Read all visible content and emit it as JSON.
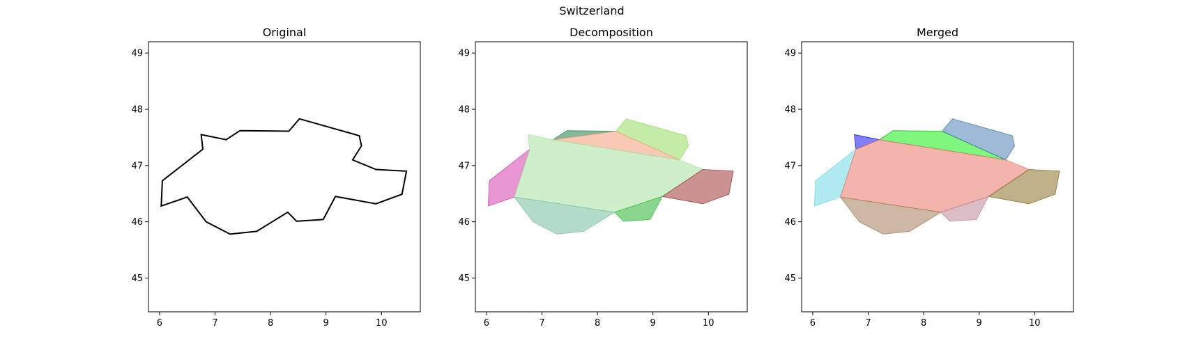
{
  "figure": {
    "suptitle": "Switzerland"
  },
  "chart_data": [
    {
      "type": "polygon",
      "title": "Original",
      "xlim": [
        5.8,
        10.7
      ],
      "ylim": [
        44.4,
        49.2
      ],
      "xticks": [
        6,
        7,
        8,
        9,
        10
      ],
      "yticks": [
        45,
        46,
        47,
        48,
        49
      ],
      "shapes": [
        {
          "name": "",
          "fill": "none",
          "stroke": "#000000",
          "opacity": 1.0,
          "points": [
            [
              6.05,
              46.73
            ],
            [
              6.78,
              47.29
            ],
            [
              6.75,
              47.55
            ],
            [
              7.2,
              47.46
            ],
            [
              7.45,
              47.62
            ],
            [
              8.33,
              47.61
            ],
            [
              8.52,
              47.83
            ],
            [
              9.6,
              47.53
            ],
            [
              9.64,
              47.35
            ],
            [
              9.48,
              47.1
            ],
            [
              9.9,
              46.93
            ],
            [
              10.45,
              46.9
            ],
            [
              10.37,
              46.49
            ],
            [
              9.9,
              46.32
            ],
            [
              9.17,
              46.45
            ],
            [
              8.95,
              46.04
            ],
            [
              8.47,
              46.01
            ],
            [
              8.31,
              46.17
            ],
            [
              7.75,
              45.83
            ],
            [
              7.27,
              45.78
            ],
            [
              6.84,
              46.0
            ],
            [
              6.5,
              46.44
            ],
            [
              6.03,
              46.28
            ]
          ]
        }
      ]
    },
    {
      "type": "polygon",
      "title": "Decomposition",
      "xlim": [
        5.8,
        10.7
      ],
      "ylim": [
        44.4,
        49.2
      ],
      "xticks": [
        6,
        7,
        8,
        9,
        10
      ],
      "yticks": [
        45,
        46,
        47,
        48,
        49
      ],
      "shapes": [
        {
          "name": "",
          "fill": "#2e8b57",
          "stroke": "#2e8b57",
          "opacity": 0.6,
          "points": [
            [
              7.2,
              47.46
            ],
            [
              7.45,
              47.62
            ],
            [
              8.33,
              47.61
            ]
          ]
        },
        {
          "name": "",
          "fill": "#9ee06a",
          "stroke": "#9ee06a",
          "opacity": 0.6,
          "points": [
            [
              8.33,
              47.61
            ],
            [
              8.52,
              47.83
            ],
            [
              9.6,
              47.53
            ],
            [
              9.64,
              47.35
            ],
            [
              9.48,
              47.1
            ]
          ]
        },
        {
          "name": "",
          "fill": "#f4a582",
          "stroke": "#f4a582",
          "opacity": 0.6,
          "points": [
            [
              7.2,
              47.46
            ],
            [
              8.33,
              47.61
            ],
            [
              9.48,
              47.1
            ]
          ]
        },
        {
          "name": "",
          "fill": "#d63fad",
          "stroke": "#d63fad",
          "opacity": 0.55,
          "points": [
            [
              6.05,
              46.73
            ],
            [
              6.78,
              47.29
            ],
            [
              6.5,
              46.44
            ],
            [
              6.03,
              46.28
            ]
          ]
        },
        {
          "name": "",
          "fill": "#a8e2a0",
          "stroke": "#a8e2a0",
          "opacity": 0.55,
          "points": [
            [
              6.78,
              47.29
            ],
            [
              6.75,
              47.55
            ],
            [
              7.2,
              47.46
            ],
            [
              9.48,
              47.1
            ],
            [
              9.9,
              46.93
            ],
            [
              9.17,
              46.45
            ],
            [
              8.31,
              46.17
            ],
            [
              6.5,
              46.44
            ]
          ]
        },
        {
          "name": "",
          "fill": "#9b3a35",
          "stroke": "#9b3a35",
          "opacity": 0.55,
          "points": [
            [
              9.9,
              46.93
            ],
            [
              10.45,
              46.9
            ],
            [
              10.37,
              46.49
            ],
            [
              9.9,
              46.32
            ],
            [
              9.17,
              46.45
            ]
          ]
        },
        {
          "name": "",
          "fill": "#3cbb42",
          "stroke": "#3cbb42",
          "opacity": 0.6,
          "points": [
            [
              9.17,
              46.45
            ],
            [
              8.95,
              46.04
            ],
            [
              8.47,
              46.01
            ],
            [
              8.31,
              46.17
            ]
          ]
        },
        {
          "name": "",
          "fill": "#7fc4a5",
          "stroke": "#7fc4a5",
          "opacity": 0.6,
          "points": [
            [
              6.5,
              46.44
            ],
            [
              8.31,
              46.17
            ],
            [
              7.75,
              45.83
            ],
            [
              7.27,
              45.78
            ],
            [
              6.84,
              46.0
            ]
          ]
        }
      ]
    },
    {
      "type": "polygon",
      "title": "Merged",
      "xlim": [
        5.8,
        10.7
      ],
      "ylim": [
        44.4,
        49.2
      ],
      "xticks": [
        6,
        7,
        8,
        9,
        10
      ],
      "yticks": [
        45,
        46,
        47,
        48,
        49
      ],
      "shapes": [
        {
          "name": "",
          "fill": "#0000ff",
          "stroke": "#0000cc",
          "opacity": 0.5,
          "points": [
            [
              6.75,
              47.55
            ],
            [
              7.2,
              47.46
            ],
            [
              6.78,
              47.29
            ]
          ]
        },
        {
          "name": "",
          "fill": "#00f000",
          "stroke": "#00b000",
          "opacity": 0.5,
          "points": [
            [
              7.2,
              47.46
            ],
            [
              7.45,
              47.62
            ],
            [
              8.33,
              47.61
            ],
            [
              9.48,
              47.1
            ]
          ]
        },
        {
          "name": "",
          "fill": "#3d76ad",
          "stroke": "#3d76ad",
          "opacity": 0.5,
          "points": [
            [
              8.33,
              47.61
            ],
            [
              8.52,
              47.83
            ],
            [
              9.6,
              47.53
            ],
            [
              9.64,
              47.35
            ],
            [
              9.48,
              47.1
            ]
          ]
        },
        {
          "name": "",
          "fill": "#72d8e6",
          "stroke": "#72d8e6",
          "opacity": 0.55,
          "points": [
            [
              6.05,
              46.73
            ],
            [
              6.78,
              47.29
            ],
            [
              6.5,
              46.44
            ],
            [
              6.03,
              46.28
            ]
          ]
        },
        {
          "name": "",
          "fill": "#e9776a",
          "stroke": "#e9776a",
          "opacity": 0.55,
          "points": [
            [
              6.78,
              47.29
            ],
            [
              7.2,
              47.46
            ],
            [
              9.48,
              47.1
            ],
            [
              9.9,
              46.93
            ],
            [
              9.17,
              46.45
            ],
            [
              8.31,
              46.17
            ],
            [
              6.5,
              46.44
            ]
          ]
        },
        {
          "name": "",
          "fill": "#7f6618",
          "stroke": "#7f6618",
          "opacity": 0.5,
          "points": [
            [
              9.9,
              46.93
            ],
            [
              10.45,
              46.9
            ],
            [
              10.37,
              46.49
            ],
            [
              9.9,
              46.32
            ],
            [
              9.17,
              46.45
            ]
          ]
        },
        {
          "name": "",
          "fill": "#bf8a98",
          "stroke": "#bf8a98",
          "opacity": 0.55,
          "points": [
            [
              9.17,
              46.45
            ],
            [
              8.95,
              46.04
            ],
            [
              8.47,
              46.01
            ],
            [
              8.31,
              46.17
            ]
          ]
        },
        {
          "name": "",
          "fill": "#a37d5a",
          "stroke": "#a37d5a",
          "opacity": 0.55,
          "points": [
            [
              6.5,
              46.44
            ],
            [
              8.31,
              46.17
            ],
            [
              7.75,
              45.83
            ],
            [
              7.27,
              45.78
            ],
            [
              6.84,
              46.0
            ]
          ]
        }
      ]
    }
  ]
}
